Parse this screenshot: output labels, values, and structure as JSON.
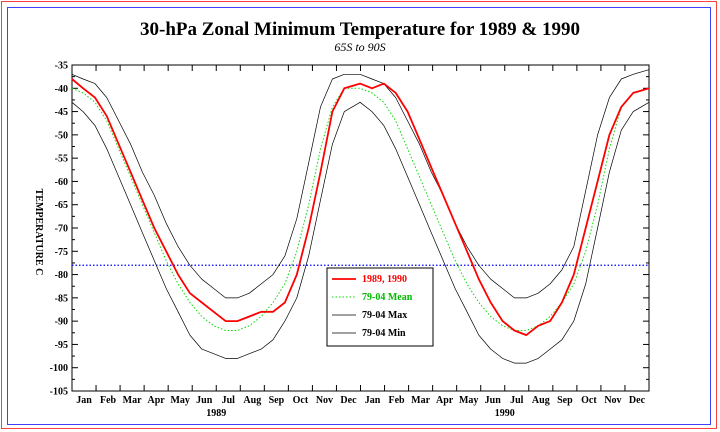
{
  "chart_data": {
    "type": "line",
    "title": "30-hPa Zonal Minimum Temperature for 1989 & 1990",
    "subtitle": "65S to 90S",
    "ylabel": "TEMPERATURE C",
    "ylim": [
      -105,
      -35
    ],
    "yticks": [
      -35,
      -40,
      -45,
      -50,
      -55,
      -60,
      -65,
      -70,
      -75,
      -80,
      -85,
      -90,
      -95,
      -100,
      -105
    ],
    "month_labels": [
      "Jan",
      "Feb",
      "Mar",
      "Apr",
      "May",
      "Jun",
      "Jul",
      "Aug",
      "Sep",
      "Oct",
      "Nov",
      "Dec",
      "Jan",
      "Feb",
      "Mar",
      "Apr",
      "May",
      "Jun",
      "Jul",
      "Aug",
      "Sep",
      "Oct",
      "Nov",
      "Dec"
    ],
    "year_labels": [
      "1989",
      "1990"
    ],
    "reference_line": -78,
    "x_unit": "day of 1989-1990 (1 = Jan 1 1989)",
    "series": [
      {
        "name": "1989, 1990",
        "color": "#ff0000",
        "x": [
          1,
          15,
          30,
          45,
          60,
          75,
          90,
          105,
          120,
          135,
          150,
          165,
          180,
          195,
          210,
          225,
          240,
          255,
          270,
          285,
          300,
          315,
          330,
          345,
          365,
          380,
          395,
          410,
          425,
          440,
          455,
          470,
          485,
          500,
          515,
          530,
          545,
          560,
          575,
          590,
          605,
          620,
          635,
          650,
          665,
          680,
          695,
          710,
          730
        ],
        "y": [
          -38,
          -40,
          -42,
          -46,
          -52,
          -58,
          -64,
          -70,
          -75,
          -80,
          -84,
          -86,
          -88,
          -90,
          -90,
          -89,
          -88,
          -88,
          -86,
          -80,
          -70,
          -58,
          -45,
          -40,
          -39,
          -40,
          -39,
          -41,
          -45,
          -51,
          -57,
          -63,
          -69,
          -75,
          -81,
          -86,
          -90,
          -92,
          -93,
          -91,
          -90,
          -86,
          -80,
          -70,
          -60,
          -50,
          -44,
          -41,
          -40
        ]
      },
      {
        "name": "79-04 Mean",
        "color": "#00dd00",
        "x": [
          1,
          15,
          30,
          45,
          60,
          75,
          90,
          105,
          120,
          135,
          150,
          165,
          180,
          195,
          210,
          225,
          240,
          255,
          270,
          285,
          300,
          315,
          330,
          345,
          365,
          380,
          395,
          410,
          425,
          440,
          455,
          470,
          485,
          500,
          515,
          530,
          545,
          560,
          575,
          590,
          605,
          620,
          635,
          650,
          665,
          680,
          695,
          710,
          730
        ],
        "y": [
          -40,
          -41,
          -43,
          -47,
          -53,
          -59,
          -65,
          -71,
          -77,
          -82,
          -86,
          -89,
          -91,
          -92,
          -92,
          -91,
          -89,
          -86,
          -82,
          -75,
          -65,
          -53,
          -44,
          -40,
          -40,
          -41,
          -43,
          -47,
          -53,
          -59,
          -65,
          -71,
          -77,
          -82,
          -86,
          -89,
          -91,
          -92,
          -92,
          -91,
          -89,
          -86,
          -82,
          -75,
          -65,
          -53,
          -44,
          -41,
          -40
        ]
      },
      {
        "name": "79-04 Max",
        "color": "#000000",
        "x": [
          1,
          15,
          30,
          45,
          60,
          75,
          90,
          105,
          120,
          135,
          150,
          165,
          180,
          195,
          210,
          225,
          240,
          255,
          270,
          285,
          300,
          315,
          330,
          345,
          365,
          380,
          395,
          410,
          425,
          440,
          455,
          470,
          485,
          500,
          515,
          530,
          545,
          560,
          575,
          590,
          605,
          620,
          635,
          650,
          665,
          680,
          695,
          710,
          730
        ],
        "y": [
          -37,
          -38,
          -39,
          -42,
          -47,
          -52,
          -58,
          -63,
          -69,
          -74,
          -78,
          -81,
          -83,
          -85,
          -85,
          -84,
          -82,
          -80,
          -76,
          -68,
          -56,
          -44,
          -38,
          -37,
          -37,
          -38,
          -39,
          -42,
          -47,
          -52,
          -58,
          -63,
          -69,
          -74,
          -78,
          -81,
          -83,
          -85,
          -85,
          -84,
          -82,
          -79,
          -74,
          -62,
          -50,
          -42,
          -38,
          -37,
          -36
        ]
      },
      {
        "name": "79-04 Min",
        "color": "#000000",
        "x": [
          1,
          15,
          30,
          45,
          60,
          75,
          90,
          105,
          120,
          135,
          150,
          165,
          180,
          195,
          210,
          225,
          240,
          255,
          270,
          285,
          300,
          315,
          330,
          345,
          365,
          380,
          395,
          410,
          425,
          440,
          455,
          470,
          485,
          500,
          515,
          530,
          545,
          560,
          575,
          590,
          605,
          620,
          635,
          650,
          665,
          680,
          695,
          710,
          730
        ],
        "y": [
          -43,
          -45,
          -48,
          -53,
          -59,
          -65,
          -71,
          -77,
          -83,
          -88,
          -93,
          -96,
          -97,
          -98,
          -98,
          -97,
          -96,
          -94,
          -90,
          -85,
          -76,
          -64,
          -52,
          -45,
          -43,
          -45,
          -48,
          -53,
          -59,
          -65,
          -71,
          -77,
          -83,
          -88,
          -93,
          -96,
          -98,
          -99,
          -99,
          -98,
          -96,
          -94,
          -90,
          -82,
          -70,
          -58,
          -49,
          -45,
          -43
        ]
      }
    ],
    "legend": {
      "placement": "center-bottom",
      "entries": [
        "1989, 1990",
        "79-04 Mean",
        "79-04 Max",
        "79-04 Min"
      ]
    },
    "grid": false
  }
}
